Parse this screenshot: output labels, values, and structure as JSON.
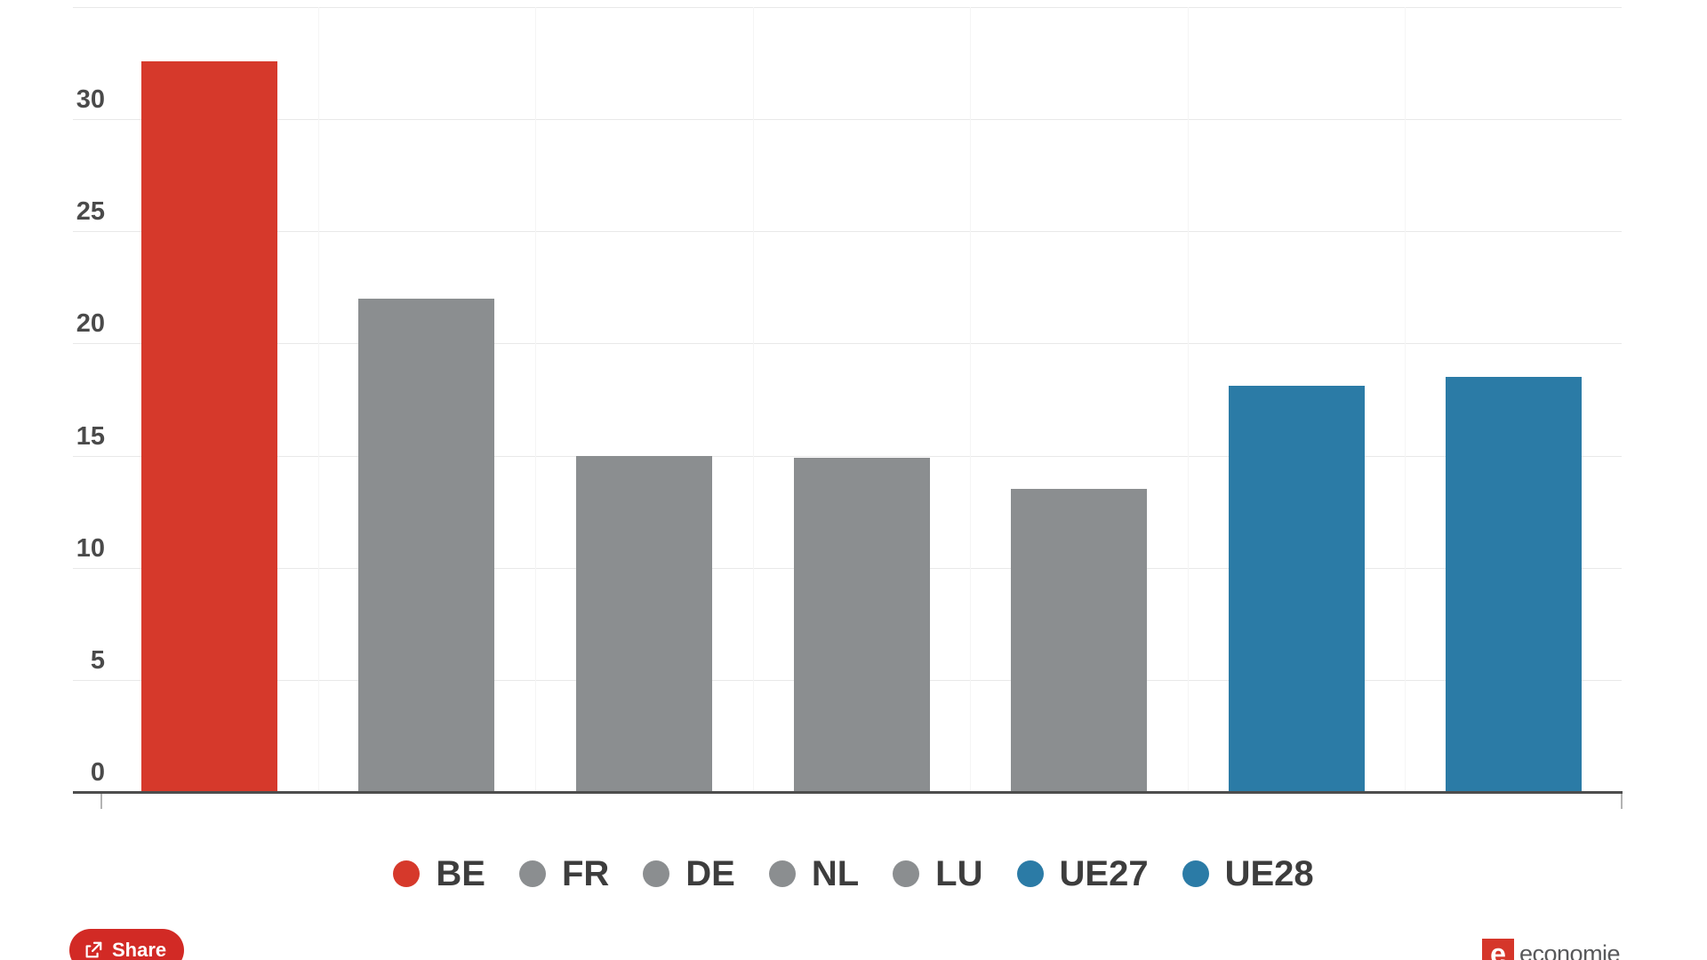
{
  "chart_data": {
    "type": "bar",
    "categories": [
      "BE",
      "FR",
      "DE",
      "NL",
      "LU",
      "UE27",
      "UE28"
    ],
    "values": [
      32.6,
      22.0,
      15.0,
      14.9,
      13.5,
      18.1,
      18.5
    ],
    "bar_colors": [
      "#d6392b",
      "#8b8e90",
      "#8b8e90",
      "#8b8e90",
      "#8b8e90",
      "#2b7ba6",
      "#2b7ba6"
    ],
    "title": "",
    "xlabel": "",
    "ylabel": "",
    "ylim": [
      0,
      35
    ],
    "ytick_values": [
      0,
      5,
      10,
      15,
      20,
      25,
      30
    ],
    "gridline_values": [
      5,
      10,
      15,
      20,
      25,
      30,
      35
    ],
    "grid": true,
    "legend_position": "bottom"
  },
  "legend": {
    "items": [
      {
        "label": "BE",
        "color": "#d6392b"
      },
      {
        "label": "FR",
        "color": "#8b8e90"
      },
      {
        "label": "DE",
        "color": "#8b8e90"
      },
      {
        "label": "NL",
        "color": "#8b8e90"
      },
      {
        "label": "LU",
        "color": "#8b8e90"
      },
      {
        "label": "UE27",
        "color": "#2b7ba6"
      },
      {
        "label": "UE28",
        "color": "#2b7ba6"
      }
    ]
  },
  "footer": {
    "share_label": "Share",
    "brand_mark": "e",
    "brand_text": "economie"
  },
  "colors": {
    "accent_red": "#d6392b",
    "neutral_gray": "#8b8e90",
    "accent_blue": "#2b7ba6",
    "share_button_red": "#d22a25",
    "brand_red": "#d5362a",
    "gridline": "#e9e9e9",
    "axis_line": "#4d4d4d",
    "axis_text": "#4a4a4a",
    "legend_text": "#3d3d3d"
  }
}
